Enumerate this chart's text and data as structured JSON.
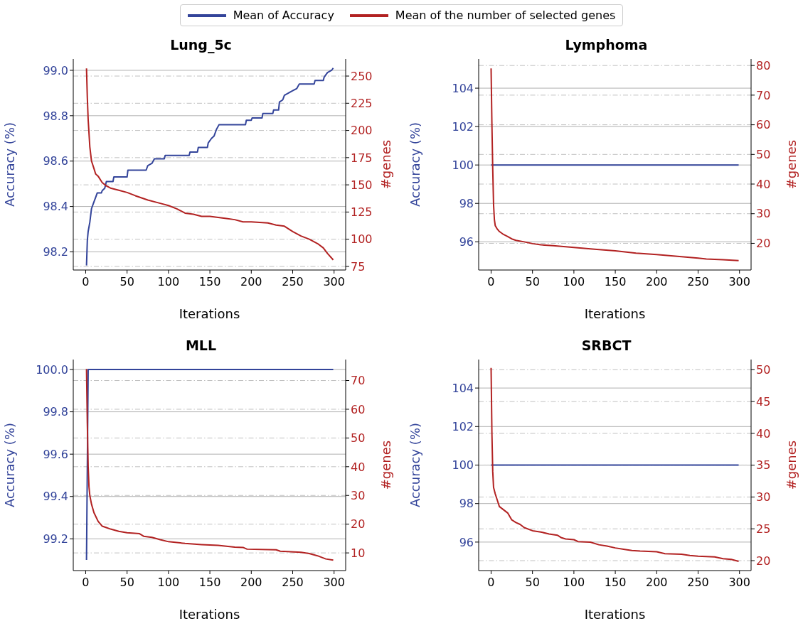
{
  "chart_data": [
    {
      "type": "line",
      "title": "Lung_5c",
      "xlabel": "Iterations",
      "ylabel": "Accuracy (%)",
      "y2label": "#genes",
      "legend": "top",
      "grid": true,
      "xlim": [
        -15,
        314
      ],
      "xticks": [
        0,
        50,
        100,
        150,
        200,
        250,
        300
      ],
      "ylim": [
        98.12,
        99.05
      ],
      "yticks": [
        98.2,
        98.4,
        98.6,
        98.8,
        {
          "value": 99,
          "label": "99.0"
        }
      ],
      "y2lim": [
        71.7,
        265.7
      ],
      "y2ticks": [
        75,
        100,
        125,
        150,
        175,
        200,
        225,
        250
      ],
      "series": [
        {
          "name": "Mean of Accuracy",
          "color": "#33449a",
          "x": [
            1,
            2,
            3,
            5,
            7,
            10,
            12,
            14,
            19,
            20,
            23,
            25,
            33,
            34,
            50,
            51,
            73,
            75,
            80,
            83,
            95,
            96,
            125,
            126,
            135,
            136,
            147,
            148,
            152,
            155,
            158,
            161,
            193,
            194,
            200,
            201,
            213,
            214,
            226,
            227,
            233,
            234,
            238,
            240,
            245,
            250,
            255,
            258,
            276,
            277,
            287,
            288,
            292,
            297,
            299
          ],
          "values": [
            98.14,
            98.25,
            98.29,
            98.33,
            98.39,
            98.42,
            98.44,
            98.46,
            98.46,
            98.47,
            98.48,
            98.51,
            98.51,
            98.53,
            98.53,
            98.56,
            98.56,
            98.58,
            98.59,
            98.61,
            98.61,
            98.625,
            98.625,
            98.64,
            98.64,
            98.66,
            98.66,
            98.68,
            98.7,
            98.71,
            98.74,
            98.76,
            98.76,
            98.78,
            98.78,
            98.79,
            98.79,
            98.81,
            98.81,
            98.825,
            98.825,
            98.86,
            98.87,
            98.89,
            98.9,
            98.91,
            98.92,
            98.94,
            98.94,
            98.955,
            98.955,
            98.97,
            98.99,
            99.0,
            99.01
          ]
        },
        {
          "name": "Mean of the number of selected genes",
          "color": "#b22222",
          "axis": "y2",
          "x": [
            1,
            2,
            3,
            5,
            7,
            10,
            12,
            15,
            20,
            25,
            30,
            40,
            50,
            60,
            75,
            90,
            100,
            110,
            120,
            130,
            140,
            150,
            160,
            170,
            180,
            190,
            200,
            210,
            220,
            230,
            240,
            250,
            260,
            270,
            280,
            287,
            292,
            299
          ],
          "values": [
            257,
            230,
            210,
            185,
            172,
            165,
            160,
            158,
            152,
            149,
            147,
            145,
            143,
            140,
            136,
            133,
            131,
            128,
            124,
            123,
            121,
            121,
            120,
            119,
            118,
            116,
            116,
            115.5,
            115,
            113,
            112,
            107,
            103,
            100,
            96,
            92,
            87,
            81
          ]
        }
      ]
    },
    {
      "type": "line",
      "title": "Lymphoma",
      "xlabel": "Iterations",
      "ylabel": "Accuracy (%)",
      "y2label": "#genes",
      "grid": true,
      "xlim": [
        -15,
        314
      ],
      "xticks": [
        0,
        50,
        100,
        150,
        200,
        250,
        300
      ],
      "ylim": [
        94.53,
        105.52
      ],
      "yticks": [
        96,
        98,
        100,
        102,
        104
      ],
      "y2lim": [
        11,
        82.2
      ],
      "y2ticks": [
        20,
        30,
        40,
        50,
        60,
        70,
        80
      ],
      "series": [
        {
          "color": "#33449a",
          "x": [
            0,
            299
          ],
          "values": [
            100,
            100
          ]
        },
        {
          "color": "#b22222",
          "axis": "y2",
          "x": [
            0,
            1,
            2,
            3,
            4,
            5,
            7,
            10,
            15,
            20,
            25,
            30,
            40,
            50,
            60,
            75,
            100,
            125,
            150,
            175,
            200,
            225,
            250,
            260,
            280,
            299
          ],
          "values": [
            79,
            60,
            45,
            33,
            28,
            26,
            25,
            24,
            23,
            22.3,
            21.5,
            21,
            20.5,
            19.9,
            19.5,
            19.2,
            18.6,
            18,
            17.5,
            16.7,
            16.2,
            15.6,
            15,
            14.7,
            14.5,
            14.2
          ]
        }
      ]
    },
    {
      "type": "line",
      "title": "MLL",
      "xlabel": "Iterations",
      "ylabel": "Accuracy (%)",
      "y2label": "#genes",
      "grid": true,
      "xlim": [
        -15,
        314
      ],
      "xticks": [
        0,
        50,
        100,
        150,
        200,
        250,
        300
      ],
      "ylim": [
        99.05,
        100.047
      ],
      "yticks": [
        99.2,
        99.4,
        99.6,
        99.8,
        {
          "value": 100,
          "label": "100.0"
        }
      ],
      "y2lim": [
        3.85,
        77.3
      ],
      "y2ticks": [
        10,
        20,
        30,
        40,
        50,
        60,
        70
      ],
      "series": [
        {
          "color": "#33449a",
          "x": [
            1,
            3,
            299
          ],
          "values": [
            99.1,
            100,
            100
          ]
        },
        {
          "color": "#b22222",
          "axis": "y2",
          "x": [
            1,
            2,
            3,
            4,
            5,
            7,
            10,
            15,
            20,
            25,
            30,
            40,
            50,
            65,
            70,
            80,
            90,
            100,
            120,
            140,
            160,
            180,
            190,
            195,
            230,
            235,
            260,
            270,
            280,
            290,
            299
          ],
          "values": [
            74,
            55,
            40,
            33,
            30,
            27,
            24,
            21,
            19.3,
            18.8,
            18.3,
            17.5,
            17,
            16.7,
            15.8,
            15.4,
            14.6,
            13.9,
            13.3,
            12.9,
            12.6,
            12,
            11.9,
            11.3,
            11.1,
            10.6,
            10.2,
            9.8,
            9,
            7.9,
            7.5
          ]
        }
      ]
    },
    {
      "type": "line",
      "title": "SRBCT",
      "xlabel": "Iterations",
      "ylabel": "Accuracy (%)",
      "y2label": "#genes",
      "grid": true,
      "xlim": [
        -15,
        314
      ],
      "xticks": [
        0,
        50,
        100,
        150,
        200,
        250,
        300
      ],
      "ylim": [
        94.52,
        105.48
      ],
      "yticks": [
        96,
        98,
        100,
        102,
        104
      ],
      "y2lim": [
        18.44,
        51.6
      ],
      "y2ticks": [
        20,
        25,
        30,
        35,
        40,
        45,
        50
      ],
      "series": [
        {
          "color": "#33449a",
          "x": [
            0,
            299
          ],
          "values": [
            100,
            100
          ]
        },
        {
          "color": "#b22222",
          "axis": "y2",
          "x": [
            0,
            1,
            2,
            3,
            5,
            8,
            10,
            15,
            20,
            25,
            30,
            35,
            40,
            50,
            60,
            70,
            80,
            85,
            90,
            100,
            105,
            120,
            130,
            140,
            150,
            160,
            170,
            180,
            200,
            210,
            230,
            240,
            250,
            270,
            280,
            290,
            299
          ],
          "values": [
            50.3,
            40,
            34,
            31.5,
            30.5,
            29.3,
            28.5,
            28,
            27.5,
            26.4,
            26,
            25.7,
            25.2,
            24.7,
            24.5,
            24.2,
            24,
            23.6,
            23.4,
            23.3,
            23,
            22.9,
            22.5,
            22.3,
            22,
            21.8,
            21.6,
            21.5,
            21.4,
            21.1,
            21,
            20.8,
            20.7,
            20.6,
            20.3,
            20.2,
            19.9
          ]
        }
      ]
    }
  ]
}
